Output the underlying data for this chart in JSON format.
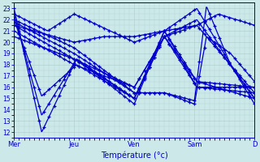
{
  "xlabel": "Température (°c)",
  "bg_color": "#cce8e8",
  "grid_color": "#aacccc",
  "line_color": "#0000cc",
  "ylim": [
    11.5,
    23.5
  ],
  "yticks": [
    12,
    13,
    14,
    15,
    16,
    17,
    18,
    19,
    20,
    21,
    22,
    23
  ],
  "xlim": [
    0,
    192
  ],
  "day_labels": [
    "Mer",
    "Jeu",
    "Ven",
    "Sam",
    "D"
  ],
  "day_positions": [
    0,
    48,
    96,
    144,
    192
  ],
  "curves": [
    {
      "xf": [
        0,
        0.115,
        0.26,
        0.5,
        0.625,
        0.76,
        1.0
      ],
      "yf": [
        23.0,
        12.0,
        18.5,
        14.5,
        21.0,
        23.0,
        14.5
      ]
    },
    {
      "xf": [
        0,
        0.115,
        0.26,
        0.5,
        0.625,
        0.76,
        1.0
      ],
      "yf": [
        22.5,
        13.5,
        18.5,
        15.0,
        20.5,
        22.0,
        15.0
      ]
    },
    {
      "xf": [
        0,
        0.115,
        0.26,
        0.5,
        0.625,
        0.76,
        1.0
      ],
      "yf": [
        22.0,
        15.2,
        18.0,
        15.0,
        20.5,
        21.5,
        15.5
      ]
    },
    {
      "xf": [
        0,
        0.25,
        0.5,
        0.625,
        0.76,
        1.0
      ],
      "yf": [
        21.5,
        18.5,
        15.0,
        21.0,
        16.5,
        16.0
      ]
    },
    {
      "xf": [
        0,
        0.25,
        0.5,
        0.625,
        0.76,
        1.0
      ],
      "yf": [
        21.0,
        18.0,
        16.0,
        20.5,
        16.0,
        15.5
      ]
    },
    {
      "xf": [
        0,
        0.25,
        0.5,
        0.625,
        0.76,
        1.0
      ],
      "yf": [
        20.5,
        18.5,
        16.0,
        20.5,
        16.5,
        15.0
      ]
    },
    {
      "xf": [
        0,
        0.14,
        0.25,
        0.5,
        0.625,
        0.76,
        0.85,
        1.0
      ],
      "yf": [
        22.5,
        21.0,
        22.5,
        20.0,
        21.0,
        21.5,
        22.5,
        21.5
      ]
    },
    {
      "xf": [
        0,
        0.25,
        0.375,
        0.5,
        0.625,
        0.76,
        1.0
      ],
      "yf": [
        21.5,
        20.0,
        20.5,
        20.5,
        21.0,
        16.0,
        16.0
      ]
    },
    {
      "xf": [
        0,
        0.25,
        0.5,
        0.625,
        0.75,
        0.8,
        0.9,
        1.0
      ],
      "yf": [
        22.0,
        19.5,
        15.5,
        15.5,
        14.8,
        23.2,
        18.0,
        15.0
      ]
    },
    {
      "xf": [
        0,
        0.25,
        0.5,
        0.625,
        0.75,
        0.8,
        0.9,
        1.0
      ],
      "yf": [
        21.8,
        19.0,
        15.5,
        15.5,
        14.5,
        20.5,
        19.0,
        16.5
      ]
    }
  ]
}
